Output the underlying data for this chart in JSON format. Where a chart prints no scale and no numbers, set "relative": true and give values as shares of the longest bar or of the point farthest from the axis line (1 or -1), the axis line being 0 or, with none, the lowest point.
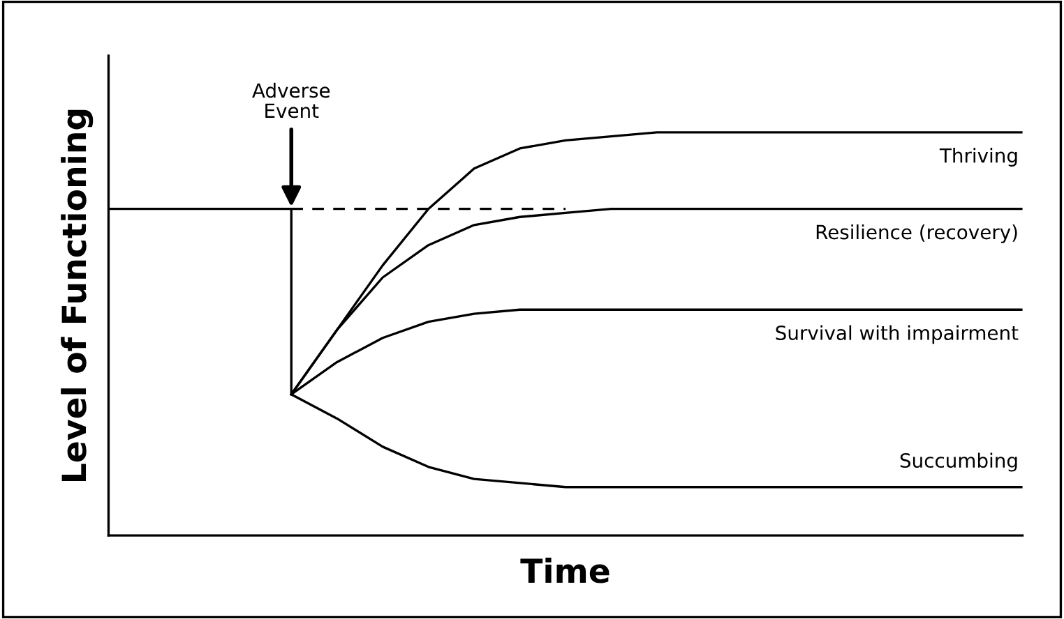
{
  "chart_data": {
    "type": "line",
    "relative": true,
    "xlabel": "Time",
    "ylabel": "Level of Functioning",
    "annotations": [
      "Adverse\nEvent"
    ],
    "categories": [
      null,
      null,
      null,
      null,
      null,
      null,
      null,
      null,
      null,
      null,
      null,
      null,
      null,
      null,
      null,
      null,
      null,
      null,
      null,
      null,
      null
    ],
    "series": [
      {
        "color": "#000000",
        "values": [
          0.81,
          0.81,
          0.81,
          0.81,
          0.81,
          null,
          null,
          null,
          null,
          null,
          null,
          null,
          null,
          null,
          null,
          null,
          null,
          null,
          null,
          null,
          null
        ]
      },
      {
        "color": "#000000",
        "line_style": "dashed",
        "values": [
          null,
          null,
          null,
          null,
          0.81,
          0.81,
          0.81,
          0.81,
          0.81,
          0.81,
          0.81,
          null,
          null,
          null,
          null,
          null,
          null,
          null,
          null,
          null,
          null
        ]
      },
      {
        "name": "Thriving",
        "color": "#000000",
        "values": [
          null,
          null,
          null,
          null,
          0.35,
          0.51,
          0.67,
          0.81,
          0.91,
          0.96,
          0.98,
          0.99,
          1.0,
          1.0,
          1.0,
          1.0,
          1.0,
          1.0,
          1.0,
          1.0,
          1.0
        ]
      },
      {
        "name": "Resilience (recovery)",
        "color": "#000000",
        "values": [
          null,
          null,
          null,
          null,
          0.35,
          0.51,
          0.64,
          0.72,
          0.77,
          0.79,
          0.8,
          0.81,
          0.81,
          0.81,
          0.81,
          0.81,
          0.81,
          0.81,
          0.81,
          0.81,
          0.81
        ]
      },
      {
        "name": "Survival with impairment",
        "color": "#000000",
        "values": [
          null,
          null,
          null,
          null,
          0.35,
          0.43,
          0.49,
          0.53,
          0.55,
          0.56,
          0.56,
          0.56,
          0.56,
          0.56,
          0.56,
          0.56,
          0.56,
          0.56,
          0.56,
          0.56,
          0.56
        ]
      },
      {
        "name": "Succumbing",
        "color": "#000000",
        "values": [
          null,
          null,
          null,
          null,
          0.35,
          0.29,
          0.22,
          0.17,
          0.14,
          0.13,
          0.12,
          0.12,
          0.12,
          0.12,
          0.12,
          0.12,
          0.12,
          0.12,
          0.12,
          0.12,
          0.12
        ]
      }
    ]
  }
}
